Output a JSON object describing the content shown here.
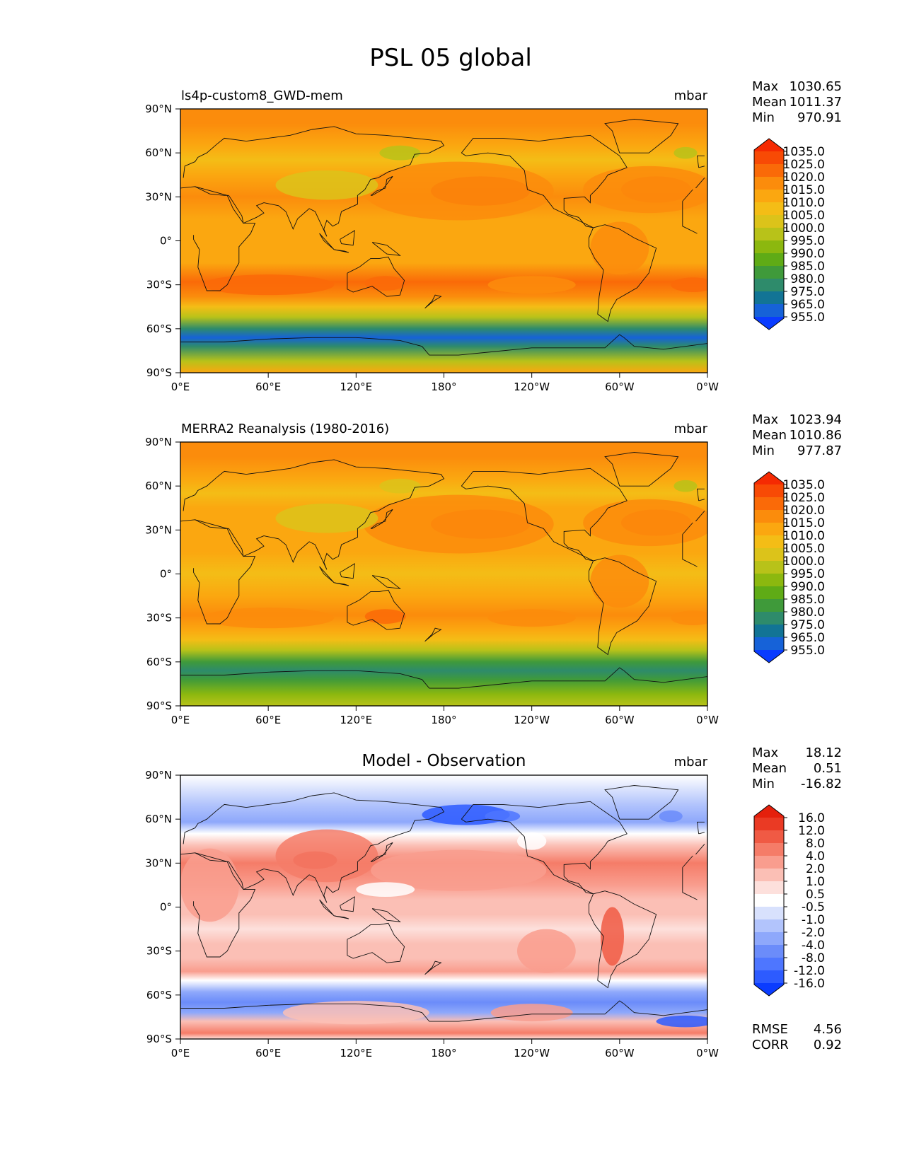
{
  "figure_title": "PSL 05 global",
  "stat_labels": {
    "max": "Max",
    "mean": "Mean",
    "min": "Min",
    "rmse": "RMSE",
    "corr": "CORR"
  },
  "colors": {
    "abs_scale": [
      "#0a3cff",
      "#1662d8",
      "#127495",
      "#2e8b6b",
      "#3f9a3a",
      "#5fab16",
      "#8cb80f",
      "#b8c219",
      "#dcc31a",
      "#f4bd16",
      "#fba710",
      "#fb8c0c",
      "#fa6a08",
      "#f84a05",
      "#f52a02"
    ],
    "diff_scale": [
      "#0a3cff",
      "#2d5bff",
      "#4e76ff",
      "#6b8cfa",
      "#8ea8fb",
      "#b2c4fc",
      "#d8e1fd",
      "#ffffff",
      "#fde0dc",
      "#fbbfb5",
      "#f99d8e",
      "#f57c68",
      "#f05a44",
      "#ea3a24",
      "#e5200c"
    ]
  },
  "axes": {
    "x_ticks": [
      "0°E",
      "60°E",
      "120°E",
      "180°",
      "120°W",
      "60°W",
      "0°W"
    ],
    "y_ticks": [
      "90°N",
      "60°N",
      "30°N",
      "0°",
      "30°S",
      "60°S",
      "90°S"
    ]
  },
  "chart_data": [
    {
      "type": "heatmap",
      "kind": "model",
      "title": "",
      "subtitle_left": "ls4p-custom8_GWD-mem",
      "units": "mbar",
      "stats": {
        "max": "1030.65",
        "mean": "1011.37",
        "min": "970.91"
      },
      "xlim": [
        0,
        360
      ],
      "ylim": [
        -90,
        90
      ],
      "colorbar_labels": [
        "955.0",
        "965.0",
        "975.0",
        "980.0",
        "985.0",
        "990.0",
        "995.0",
        "1000.0",
        "1005.0",
        "1010.0",
        "1015.0",
        "1020.0",
        "1025.0",
        "1035.0"
      ]
    },
    {
      "type": "heatmap",
      "kind": "obs",
      "title": "",
      "subtitle_left": "MERRA2 Reanalysis (1980-2016)",
      "units": "mbar",
      "stats": {
        "max": "1023.94",
        "mean": "1010.86",
        "min": "977.87"
      },
      "xlim": [
        0,
        360
      ],
      "ylim": [
        -90,
        90
      ],
      "colorbar_labels": [
        "955.0",
        "965.0",
        "975.0",
        "980.0",
        "985.0",
        "990.0",
        "995.0",
        "1000.0",
        "1005.0",
        "1010.0",
        "1015.0",
        "1020.0",
        "1025.0",
        "1035.0"
      ]
    },
    {
      "type": "heatmap",
      "kind": "diff",
      "title": "Model - Observation",
      "subtitle_left": "",
      "units": "mbar",
      "stats": {
        "max": "18.12",
        "mean": "0.51",
        "min": "-16.82"
      },
      "rmse": "4.56",
      "corr": "0.92",
      "xlim": [
        0,
        360
      ],
      "ylim": [
        -90,
        90
      ],
      "colorbar_labels": [
        "-16.0",
        "-12.0",
        "-8.0",
        "-4.0",
        "-2.0",
        "-1.0",
        "-0.5",
        "0.5",
        "1.0",
        "2.0",
        "4.0",
        "8.0",
        "12.0",
        "16.0"
      ]
    }
  ]
}
